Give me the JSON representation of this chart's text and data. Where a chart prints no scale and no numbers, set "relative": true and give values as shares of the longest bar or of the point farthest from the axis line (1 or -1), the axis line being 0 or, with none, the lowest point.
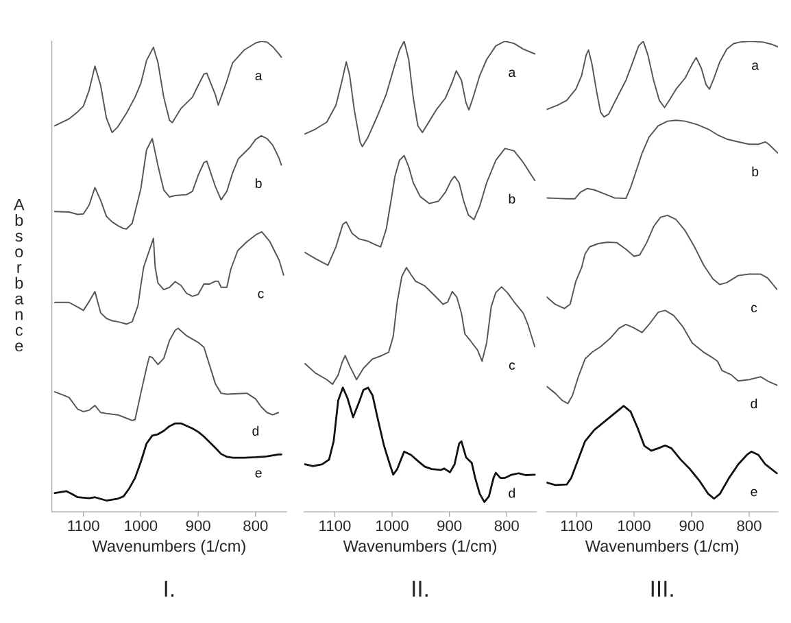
{
  "chart_data": [
    {
      "type": "line",
      "title": "I.",
      "xlabel": "Wavenumbers (1/cm)",
      "ylabel": "Absorbance",
      "relative": true,
      "xlim": [
        1155,
        746
      ],
      "xticks": [
        1100,
        1000,
        900,
        800
      ],
      "tick_labels": "x",
      "grid": false,
      "legend": false,
      "series": [
        {
          "name": "a",
          "color": "#555555",
          "x": [
            1150,
            1125,
            1110,
            1100,
            1090,
            1080,
            1070,
            1060,
            1050,
            1040,
            1025,
            1010,
            1000,
            990,
            978,
            970,
            960,
            950,
            945,
            930,
            910,
            900,
            890,
            885,
            870,
            865,
            850,
            840,
            820,
            800,
            790,
            780,
            770,
            760,
            755
          ],
          "values": [
            0.82,
            0.835,
            0.85,
            0.862,
            0.896,
            0.947,
            0.906,
            0.837,
            0.806,
            0.818,
            0.847,
            0.881,
            0.91,
            0.959,
            0.987,
            0.954,
            0.881,
            0.832,
            0.827,
            0.857,
            0.881,
            0.906,
            0.93,
            0.932,
            0.886,
            0.864,
            0.915,
            0.954,
            0.981,
            0.996,
            1.0,
            0.998,
            0.988,
            0.974,
            0.966
          ]
        },
        {
          "name": "b",
          "color": "#555555",
          "x": [
            1150,
            1125,
            1110,
            1100,
            1090,
            1080,
            1070,
            1060,
            1050,
            1040,
            1030,
            1025,
            1015,
            1000,
            990,
            980,
            970,
            960,
            950,
            940,
            920,
            910,
            900,
            890,
            885,
            870,
            860,
            850,
            840,
            830,
            810,
            800,
            790,
            780,
            770,
            760,
            755
          ],
          "values": [
            0.638,
            0.637,
            0.632,
            0.633,
            0.652,
            0.689,
            0.662,
            0.628,
            0.616,
            0.608,
            0.602,
            0.601,
            0.613,
            0.686,
            0.769,
            0.793,
            0.735,
            0.684,
            0.669,
            0.672,
            0.674,
            0.681,
            0.715,
            0.742,
            0.745,
            0.691,
            0.663,
            0.681,
            0.72,
            0.75,
            0.774,
            0.791,
            0.799,
            0.793,
            0.779,
            0.754,
            0.737
          ]
        },
        {
          "name": "c",
          "color": "#555555",
          "x": [
            1150,
            1125,
            1110,
            1100,
            1090,
            1080,
            1070,
            1060,
            1050,
            1040,
            1025,
            1015,
            1005,
            1000,
            995,
            978,
            975,
            970,
            960,
            950,
            940,
            930,
            920,
            910,
            900,
            890,
            880,
            870,
            865,
            860,
            850,
            843,
            831,
            815,
            799,
            789,
            775,
            759,
            751
          ],
          "values": [
            0.445,
            0.445,
            0.435,
            0.428,
            0.447,
            0.468,
            0.423,
            0.411,
            0.406,
            0.404,
            0.399,
            0.404,
            0.438,
            0.481,
            0.52,
            0.581,
            0.52,
            0.486,
            0.472,
            0.477,
            0.489,
            0.481,
            0.464,
            0.458,
            0.462,
            0.484,
            0.484,
            0.49,
            0.49,
            0.477,
            0.477,
            0.516,
            0.555,
            0.574,
            0.589,
            0.595,
            0.574,
            0.535,
            0.503
          ]
        },
        {
          "name": "d",
          "color": "#555555",
          "x": [
            1150,
            1135,
            1125,
            1110,
            1100,
            1090,
            1080,
            1070,
            1060,
            1040,
            1025,
            1015,
            1010,
            1000,
            990,
            985,
            980,
            970,
            960,
            950,
            940,
            935,
            920,
            900,
            890,
            880,
            870,
            860,
            850,
            830,
            815,
            800,
            790,
            780,
            770,
            760
          ],
          "values": [
            0.255,
            0.248,
            0.243,
            0.218,
            0.213,
            0.216,
            0.226,
            0.211,
            0.209,
            0.206,
            0.199,
            0.194,
            0.196,
            0.252,
            0.306,
            0.33,
            0.328,
            0.313,
            0.326,
            0.364,
            0.386,
            0.39,
            0.374,
            0.36,
            0.35,
            0.311,
            0.272,
            0.252,
            0.25,
            0.251,
            0.252,
            0.24,
            0.223,
            0.211,
            0.206,
            0.211
          ]
        },
        {
          "name": "e",
          "color": "#111111",
          "x": [
            1150,
            1130,
            1120,
            1110,
            1090,
            1080,
            1060,
            1040,
            1030,
            1020,
            1010,
            1000,
            990,
            980,
            970,
            960,
            950,
            940,
            930,
            910,
            900,
            890,
            880,
            870,
            860,
            850,
            840,
            820,
            800,
            780,
            760,
            755
          ],
          "values": [
            0.04,
            0.044,
            0.038,
            0.031,
            0.029,
            0.031,
            0.024,
            0.028,
            0.033,
            0.05,
            0.072,
            0.106,
            0.145,
            0.162,
            0.165,
            0.172,
            0.182,
            0.188,
            0.188,
            0.177,
            0.17,
            0.16,
            0.148,
            0.136,
            0.123,
            0.117,
            0.115,
            0.115,
            0.116,
            0.118,
            0.122,
            0.122
          ]
        }
      ]
    },
    {
      "type": "line",
      "title": "II.",
      "xlabel": "Wavenumbers (1/cm)",
      "relative": true,
      "xlim": [
        1154,
        748
      ],
      "xticks": [
        1100,
        1000,
        900,
        800
      ],
      "tick_labels": "x",
      "grid": false,
      "legend": false,
      "series": [
        {
          "name": "a",
          "color": "#555555",
          "x": [
            1152,
            1134,
            1114,
            1098,
            1088,
            1080,
            1074,
            1066,
            1056,
            1052,
            1042,
            1026,
            1010,
            995,
            987,
            979,
            971,
            963,
            955,
            947,
            935,
            923,
            907,
            895,
            888,
            879,
            871,
            866,
            859,
            847,
            835,
            819,
            803,
            787,
            771,
            751
          ],
          "values": [
            0.803,
            0.813,
            0.828,
            0.864,
            0.913,
            0.956,
            0.927,
            0.854,
            0.786,
            0.776,
            0.796,
            0.84,
            0.888,
            0.951,
            0.981,
            1.0,
            0.961,
            0.879,
            0.82,
            0.806,
            0.83,
            0.854,
            0.879,
            0.913,
            0.937,
            0.917,
            0.869,
            0.854,
            0.879,
            0.927,
            0.961,
            0.99,
            1.0,
            0.995,
            0.983,
            0.973
          ]
        },
        {
          "name": "b",
          "color": "#555555",
          "x": [
            1152,
            1134,
            1112,
            1098,
            1086,
            1080,
            1070,
            1058,
            1042,
            1030,
            1020,
            1010,
            1002,
            995,
            987,
            979,
            971,
            963,
            951,
            935,
            919,
            907,
            897,
            891,
            883,
            875,
            867,
            857,
            847,
            835,
            819,
            803,
            787,
            771,
            751
          ],
          "values": [
            0.551,
            0.538,
            0.524,
            0.563,
            0.611,
            0.616,
            0.592,
            0.58,
            0.575,
            0.568,
            0.563,
            0.602,
            0.66,
            0.713,
            0.747,
            0.757,
            0.733,
            0.699,
            0.67,
            0.655,
            0.66,
            0.679,
            0.704,
            0.713,
            0.699,
            0.66,
            0.631,
            0.621,
            0.65,
            0.699,
            0.747,
            0.772,
            0.767,
            0.742,
            0.704
          ]
        },
        {
          "name": "c",
          "color": "#555555",
          "x": [
            1152,
            1134,
            1114,
            1104,
            1094,
            1088,
            1082,
            1074,
            1062,
            1050,
            1034,
            1018,
            1006,
            998,
            991,
            983,
            975,
            967,
            959,
            943,
            927,
            911,
            903,
            895,
            887,
            879,
            873,
            863,
            851,
            843,
            835,
            827,
            819,
            809,
            799,
            787,
            771,
            763,
            751
          ],
          "values": [
            0.315,
            0.295,
            0.281,
            0.271,
            0.291,
            0.315,
            0.332,
            0.31,
            0.281,
            0.305,
            0.325,
            0.332,
            0.339,
            0.373,
            0.446,
            0.5,
            0.519,
            0.504,
            0.49,
            0.48,
            0.461,
            0.441,
            0.446,
            0.468,
            0.456,
            0.422,
            0.378,
            0.363,
            0.344,
            0.32,
            0.359,
            0.436,
            0.466,
            0.478,
            0.466,
            0.446,
            0.422,
            0.398,
            0.351
          ]
        },
        {
          "name": "d",
          "color": "#111111",
          "x": [
            1152,
            1138,
            1122,
            1110,
            1102,
            1094,
            1086,
            1078,
            1068,
            1058,
            1050,
            1042,
            1034,
            1026,
            1014,
            1004,
            998,
            991,
            979,
            967,
            955,
            943,
            931,
            915,
            909,
            899,
            891,
            883,
            879,
            871,
            861,
            855,
            847,
            839,
            831,
            823,
            819,
            811,
            803,
            791,
            779,
            767,
            751
          ],
          "values": [
            0.101,
            0.097,
            0.101,
            0.111,
            0.15,
            0.237,
            0.264,
            0.242,
            0.201,
            0.232,
            0.259,
            0.264,
            0.247,
            0.203,
            0.14,
            0.101,
            0.079,
            0.091,
            0.128,
            0.121,
            0.108,
            0.096,
            0.091,
            0.089,
            0.092,
            0.084,
            0.101,
            0.145,
            0.15,
            0.116,
            0.104,
            0.072,
            0.038,
            0.021,
            0.033,
            0.072,
            0.083,
            0.072,
            0.072,
            0.079,
            0.082,
            0.078,
            0.079
          ]
        }
      ]
    },
    {
      "type": "line",
      "title": "III.",
      "xlabel": "Wavenumbers (1/cm)",
      "relative": true,
      "xlim": [
        1152,
        750
      ],
      "xticks": [
        1100,
        1000,
        900,
        800
      ],
      "tick_labels": "x",
      "grid": false,
      "legend": false,
      "series": [
        {
          "name": "a",
          "color": "#555555",
          "x": [
            1151,
            1133,
            1117,
            1101,
            1091,
            1083,
            1079,
            1073,
            1065,
            1058,
            1052,
            1044,
            1030,
            1014,
            1002,
            992,
            984,
            976,
            966,
            956,
            947,
            939,
            927,
            911,
            899,
            892,
            883,
            875,
            869,
            861,
            851,
            839,
            827,
            816,
            798,
            776,
            760,
            750
          ],
          "values": [
            0.855,
            0.864,
            0.874,
            0.898,
            0.927,
            0.971,
            0.981,
            0.951,
            0.893,
            0.849,
            0.839,
            0.845,
            0.879,
            0.917,
            0.956,
            0.99,
            1.0,
            0.971,
            0.917,
            0.874,
            0.859,
            0.874,
            0.898,
            0.922,
            0.951,
            0.965,
            0.942,
            0.908,
            0.898,
            0.922,
            0.956,
            0.983,
            0.995,
            0.998,
            1.0,
            0.998,
            0.993,
            0.988
          ]
        },
        {
          "name": "b",
          "color": "#555555",
          "x": [
            1151,
            1133,
            1117,
            1103,
            1093,
            1081,
            1069,
            1054,
            1034,
            1014,
            1006,
            998,
            986,
            974,
            958,
            942,
            927,
            911,
            891,
            871,
            855,
            839,
            819,
            800,
            784,
            772,
            766,
            750
          ],
          "values": [
            0.667,
            0.666,
            0.665,
            0.665,
            0.679,
            0.687,
            0.684,
            0.677,
            0.667,
            0.666,
            0.689,
            0.718,
            0.762,
            0.796,
            0.82,
            0.83,
            0.832,
            0.83,
            0.823,
            0.813,
            0.801,
            0.792,
            0.786,
            0.781,
            0.781,
            0.786,
            0.781,
            0.762
          ]
        },
        {
          "name": "c",
          "color": "#555555",
          "x": [
            1151,
            1137,
            1121,
            1111,
            1101,
            1091,
            1085,
            1077,
            1062,
            1046,
            1030,
            1014,
            1000,
            990,
            978,
            966,
            954,
            942,
            927,
            911,
            895,
            879,
            863,
            851,
            839,
            819,
            800,
            780,
            768,
            752
          ],
          "values": [
            0.456,
            0.441,
            0.432,
            0.441,
            0.49,
            0.519,
            0.548,
            0.563,
            0.57,
            0.573,
            0.572,
            0.558,
            0.543,
            0.546,
            0.572,
            0.606,
            0.626,
            0.63,
            0.621,
            0.597,
            0.563,
            0.524,
            0.495,
            0.483,
            0.487,
            0.502,
            0.505,
            0.505,
            0.497,
            0.473
          ]
        },
        {
          "name": "d",
          "color": "#555555",
          "x": [
            1151,
            1137,
            1125,
            1115,
            1107,
            1097,
            1085,
            1073,
            1058,
            1042,
            1026,
            1014,
            1002,
            986,
            974,
            958,
            946,
            931,
            915,
            899,
            879,
            863,
            855,
            847,
            831,
            819,
            800,
            780,
            768,
            752
          ],
          "values": [
            0.266,
            0.252,
            0.237,
            0.23,
            0.247,
            0.286,
            0.325,
            0.339,
            0.351,
            0.368,
            0.39,
            0.398,
            0.392,
            0.381,
            0.398,
            0.424,
            0.428,
            0.417,
            0.393,
            0.359,
            0.339,
            0.327,
            0.32,
            0.3,
            0.291,
            0.278,
            0.281,
            0.287,
            0.278,
            0.269
          ]
        },
        {
          "name": "e",
          "color": "#111111",
          "x": [
            1151,
            1137,
            1117,
            1109,
            1097,
            1085,
            1069,
            1050,
            1030,
            1018,
            1006,
            994,
            982,
            970,
            958,
            946,
            935,
            919,
            903,
            887,
            871,
            861,
            851,
            835,
            819,
            804,
            796,
            784,
            772,
            752
          ],
          "values": [
            0.062,
            0.057,
            0.058,
            0.072,
            0.111,
            0.15,
            0.174,
            0.193,
            0.213,
            0.225,
            0.213,
            0.179,
            0.14,
            0.13,
            0.135,
            0.141,
            0.135,
            0.111,
            0.091,
            0.067,
            0.038,
            0.028,
            0.038,
            0.072,
            0.101,
            0.121,
            0.128,
            0.121,
            0.101,
            0.082
          ]
        }
      ]
    }
  ]
}
